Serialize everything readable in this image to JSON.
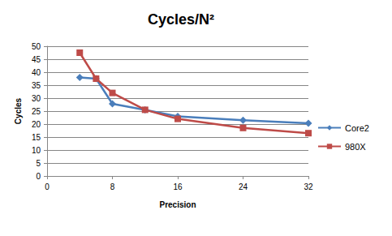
{
  "chart_data": {
    "type": "line",
    "title": "Cycles/N²",
    "x_label": "Precision",
    "y_label": "Cycles",
    "x": [
      4,
      6,
      8,
      12,
      16,
      24,
      32
    ],
    "series": [
      {
        "name": "Core2",
        "color": "#4a7ebb",
        "marker": "diamond",
        "values": [
          38,
          37.5,
          27.8,
          25.5,
          23,
          21.5,
          20.3
        ]
      },
      {
        "name": "980X",
        "color": "#be4b48",
        "marker": "square",
        "values": [
          47.5,
          37.5,
          32,
          25.5,
          22,
          18.5,
          16.5
        ]
      }
    ],
    "xlim": [
      0,
      32
    ],
    "xticks": [
      0,
      8,
      16,
      24,
      32
    ],
    "ylim": [
      0,
      50
    ],
    "yticks": [
      0,
      5,
      10,
      15,
      20,
      25,
      30,
      35,
      40,
      45,
      50
    ],
    "grid": true,
    "legend": "right"
  }
}
